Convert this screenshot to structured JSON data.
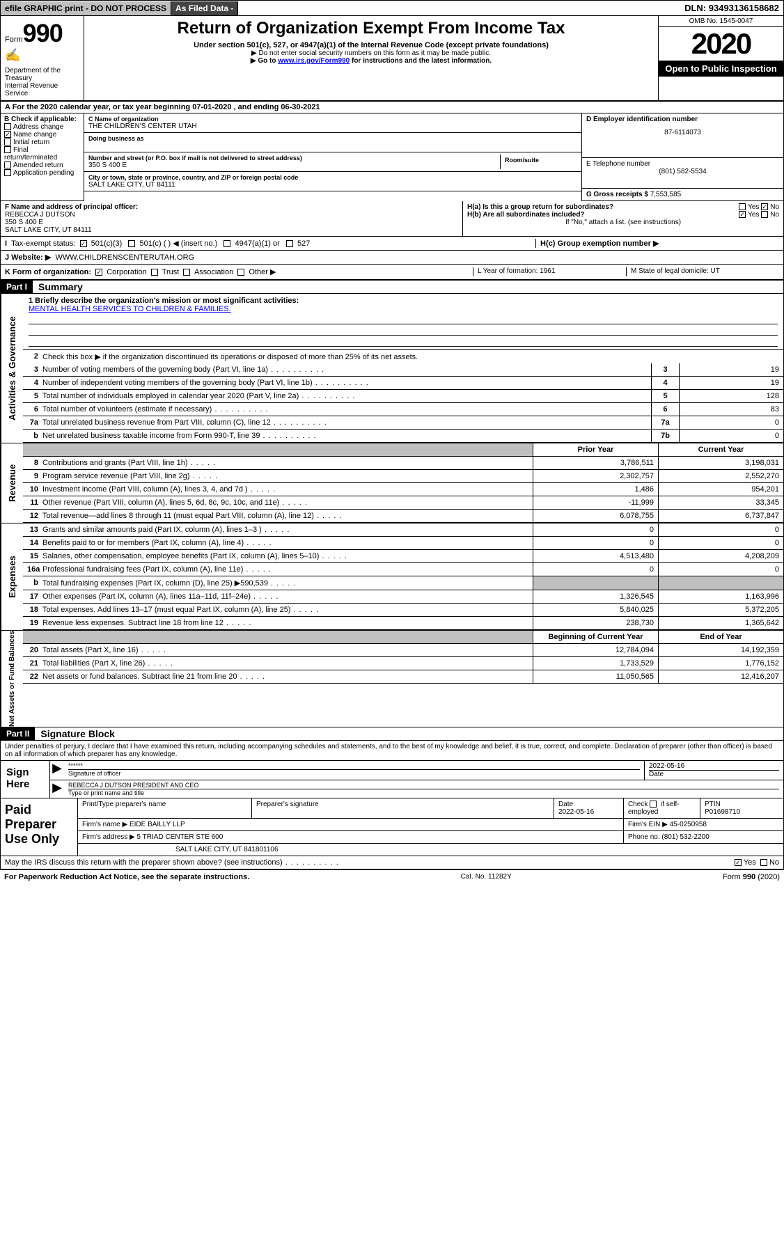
{
  "topbar": {
    "efile": "efile GRAPHIC print - DO NOT PROCESS",
    "asfiled": "As Filed Data -",
    "dln_label": "DLN:",
    "dln": "93493136158682"
  },
  "header": {
    "form_label": "Form",
    "form_num": "990",
    "dept1": "Department of the Treasury",
    "dept2": "Internal Revenue Service",
    "title": "Return of Organization Exempt From Income Tax",
    "subtitle": "Under section 501(c), 527, or 4947(a)(1) of the Internal Revenue Code (except private foundations)",
    "note1": "▶ Do not enter social security numbers on this form as it may be made public.",
    "note2_pre": "▶ Go to ",
    "note2_link": "www.irs.gov/Form990",
    "note2_post": " for instructions and the latest information.",
    "omb": "OMB No. 1545-0047",
    "year": "2020",
    "otpi": "Open to Public Inspection"
  },
  "lineA": "A  For the 2020 calendar year, or tax year beginning 07-01-2020   , and ending 06-30-2021",
  "boxB": {
    "label": "B Check if applicable:",
    "items": [
      "Address change",
      "Name change",
      "Initial return",
      "Final return/terminated",
      "Amended return",
      "Application pending"
    ],
    "checked_idx": 1
  },
  "boxC": {
    "name_label": "C Name of organization",
    "name": "THE CHILDREN'S CENTER UTAH",
    "dba_label": "Doing business as",
    "addr_label": "Number and street (or P.O. box if mail is not delivered to street address)",
    "room_label": "Room/suite",
    "street": "350 S 400 E",
    "city_label": "City or town, state or province, country, and ZIP or foreign postal code",
    "city": "SALT LAKE CITY, UT  84111"
  },
  "boxDE": {
    "d_label": "D Employer identification number",
    "ein": "87-6114073",
    "e_label": "E Telephone number",
    "phone": "(801) 582-5534",
    "g_label": "G Gross receipts $",
    "g_val": "7,553,585"
  },
  "boxF": {
    "label": "F  Name and address of principal officer:",
    "name": "REBECCA J DUTSON",
    "street": "350 S 400 E",
    "city": "SALT LAKE CITY, UT  84111"
  },
  "boxH": {
    "a": "H(a)  Is this a group return for subordinates?",
    "b": "H(b)  Are all subordinates included?",
    "ifno": "If \"No,\" attach a list. (see instructions)",
    "c": "H(c)  Group exemption number ▶",
    "yes": "Yes",
    "no": "No"
  },
  "rowI": {
    "label": "I  Tax-exempt status:",
    "opts": [
      "501(c)(3)",
      "501(c) (  ) ◀ (insert no.)",
      "4947(a)(1) or",
      "527"
    ]
  },
  "rowJ": {
    "label": "J  Website: ▶",
    "url": "WWW.CHILDRENSCENTERUTAH.ORG"
  },
  "rowK": {
    "label": "K Form of organization:",
    "opts": [
      "Corporation",
      "Trust",
      "Association",
      "Other ▶"
    ],
    "l": "L Year of formation: 1961",
    "m": "M State of legal domicile: UT"
  },
  "part1": {
    "label": "Part I",
    "title": "Summary"
  },
  "mission": {
    "line1": "1  Briefly describe the organization's mission or most significant activities:",
    "text": "MENTAL HEALTH SERVICES TO CHILDREN & FAMILIES."
  },
  "governance": {
    "tab": "Activities & Governance",
    "line2": "Check this box ▶         if the organization discontinued its operations or disposed of more than 25% of its net assets.",
    "lines": [
      {
        "n": "3",
        "t": "Number of voting members of the governing body (Part VI, line 1a)",
        "box": "3",
        "val": "19"
      },
      {
        "n": "4",
        "t": "Number of independent voting members of the governing body (Part VI, line 1b)",
        "box": "4",
        "val": "19"
      },
      {
        "n": "5",
        "t": "Total number of individuals employed in calendar year 2020 (Part V, line 2a)",
        "box": "5",
        "val": "128"
      },
      {
        "n": "6",
        "t": "Total number of volunteers (estimate if necessary)",
        "box": "6",
        "val": "83"
      },
      {
        "n": "7a",
        "t": "Total unrelated business revenue from Part VIII, column (C), line 12",
        "box": "7a",
        "val": "0"
      },
      {
        "n": "b",
        "t": "Net unrelated business taxable income from Form 990-T, line 39",
        "box": "7b",
        "val": "0"
      }
    ]
  },
  "revenue": {
    "tab": "Revenue",
    "hdr_prior": "Prior Year",
    "hdr_curr": "Current Year",
    "lines": [
      {
        "n": "8",
        "t": "Contributions and grants (Part VIII, line 1h)",
        "p": "3,786,511",
        "c": "3,198,031"
      },
      {
        "n": "9",
        "t": "Program service revenue (Part VIII, line 2g)",
        "p": "2,302,757",
        "c": "2,552,270"
      },
      {
        "n": "10",
        "t": "Investment income (Part VIII, column (A), lines 3, 4, and 7d )",
        "p": "1,486",
        "c": "954,201"
      },
      {
        "n": "11",
        "t": "Other revenue (Part VIII, column (A), lines 5, 6d, 8c, 9c, 10c, and 11e)",
        "p": "-11,999",
        "c": "33,345"
      },
      {
        "n": "12",
        "t": "Total revenue—add lines 8 through 11 (must equal Part VIII, column (A), line 12)",
        "p": "6,078,755",
        "c": "6,737,847"
      }
    ]
  },
  "expenses": {
    "tab": "Expenses",
    "lines": [
      {
        "n": "13",
        "t": "Grants and similar amounts paid (Part IX, column (A), lines 1–3 )",
        "p": "0",
        "c": "0"
      },
      {
        "n": "14",
        "t": "Benefits paid to or for members (Part IX, column (A), line 4)",
        "p": "0",
        "c": "0"
      },
      {
        "n": "15",
        "t": "Salaries, other compensation, employee benefits (Part IX, column (A), lines 5–10)",
        "p": "4,513,480",
        "c": "4,208,209"
      },
      {
        "n": "16a",
        "t": "Professional fundraising fees (Part IX, column (A), line 11e)",
        "p": "0",
        "c": "0"
      },
      {
        "n": "b",
        "t": "Total fundraising expenses (Part IX, column (D), line 25) ▶590,539",
        "p": "",
        "c": "",
        "gray": true
      },
      {
        "n": "17",
        "t": "Other expenses (Part IX, column (A), lines 11a–11d, 11f–24e)",
        "p": "1,326,545",
        "c": "1,163,996"
      },
      {
        "n": "18",
        "t": "Total expenses. Add lines 13–17 (must equal Part IX, column (A), line 25)",
        "p": "5,840,025",
        "c": "5,372,205"
      },
      {
        "n": "19",
        "t": "Revenue less expenses. Subtract line 18 from line 12",
        "p": "238,730",
        "c": "1,365,642"
      }
    ]
  },
  "netassets": {
    "tab": "Net Assets or Fund Balances",
    "hdr_prior": "Beginning of Current Year",
    "hdr_curr": "End of Year",
    "lines": [
      {
        "n": "20",
        "t": "Total assets (Part X, line 16)",
        "p": "12,784,094",
        "c": "14,192,359"
      },
      {
        "n": "21",
        "t": "Total liabilities (Part X, line 26)",
        "p": "1,733,529",
        "c": "1,776,152"
      },
      {
        "n": "22",
        "t": "Net assets or fund balances. Subtract line 21 from line 20",
        "p": "11,050,565",
        "c": "12,416,207"
      }
    ]
  },
  "part2": {
    "label": "Part II",
    "title": "Signature Block"
  },
  "sig": {
    "declare": "Under penalties of perjury, I declare that I have examined this return, including accompanying schedules and statements, and to the best of my knowledge and belief, it is true, correct, and complete. Declaration of preparer (other than officer) is based on all information of which preparer has any knowledge.",
    "sign_label": "Sign Here",
    "stars": "******",
    "date": "2022-05-16",
    "sig_of_officer": "Signature of officer",
    "date_lbl": "Date",
    "officer": "REBECCA J DUTSON  PRESIDENT AND CEO",
    "type_or_print": "Type or print name and title"
  },
  "preparer": {
    "label": "Paid Preparer Use Only",
    "h1": "Print/Type preparer's name",
    "h2": "Preparer's signature",
    "h3": "Date",
    "date": "2022-05-16",
    "h4_pre": "Check",
    "h4_post": "if self-employed",
    "h5": "PTIN",
    "ptin": "P01698710",
    "firm_name_lbl": "Firm's name    ▶",
    "firm_name": "EIDE BAILLY LLP",
    "firm_ein_lbl": "Firm's EIN ▶",
    "firm_ein": "45-0250958",
    "firm_addr_lbl": "Firm's address ▶",
    "firm_addr": "5 TRIAD CENTER STE 600",
    "firm_city": "SALT LAKE CITY, UT  841801106",
    "phone_lbl": "Phone no.",
    "phone": "(801) 532-2200"
  },
  "footer": {
    "q": "May the IRS discuss this return with the preparer shown above? (see instructions)",
    "pra": "For Paperwork Reduction Act Notice, see the separate instructions.",
    "cat": "Cat. No. 11282Y",
    "form": "Form 990 (2020)",
    "yes": "Yes",
    "no": "No"
  }
}
